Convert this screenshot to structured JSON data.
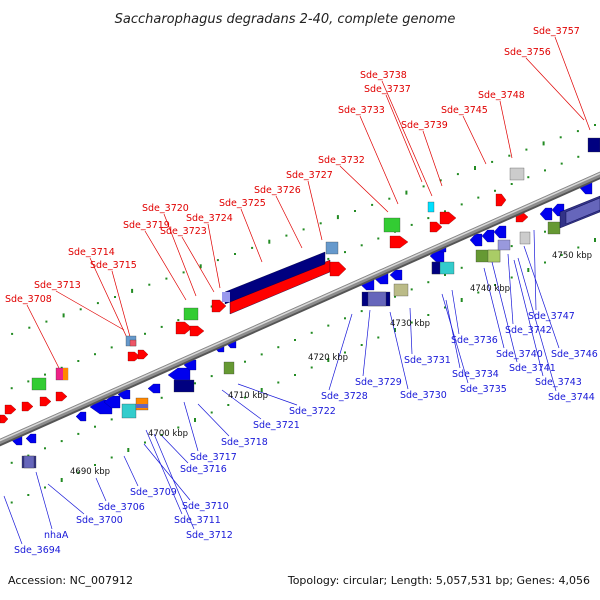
{
  "title": "Saccharophagus degradans 2-40, complete genome",
  "footer": {
    "accession": "Accession: NC_007912",
    "topology": "Topology: circular; Length: 5,057,531 bp; Genes: 4,056"
  },
  "colors": {
    "forward_label": "#e00000",
    "reverse_label": "#1818d8",
    "forward_gene": "#ff0000",
    "reverse_gene": "#0000ee",
    "backbone": "#8c8c8c",
    "tick": "#228b22"
  },
  "scale_labels": [
    {
      "text": "4690 kbp",
      "kbp": 4690
    },
    {
      "text": "4700 kbp",
      "kbp": 4700
    },
    {
      "text": "4710 kbp",
      "kbp": 4710
    },
    {
      "text": "4720 kbp",
      "kbp": 4720
    },
    {
      "text": "4730 kbp",
      "kbp": 4730
    },
    {
      "text": "4740 kbp",
      "kbp": 4740
    },
    {
      "text": "4750 kbp",
      "kbp": 4750
    }
  ],
  "top_labels": [
    "Sde_3708",
    "Sde_3713",
    "Sde_3714",
    "Sde_3715",
    "Sde_3719",
    "Sde_3720",
    "Sde_3723",
    "Sde_3724",
    "Sde_3725",
    "Sde_3726",
    "Sde_3727",
    "Sde_3732",
    "Sde_3733",
    "Sde_3737",
    "Sde_3738",
    "Sde_3739",
    "Sde_3745",
    "Sde_3748",
    "Sde_3756",
    "Sde_3757"
  ],
  "bottom_labels": [
    "Sde_3694",
    "nhaA",
    "Sde_3700",
    "Sde_3706",
    "Sde_3709",
    "Sde_3710",
    "Sde_3711",
    "Sde_3712",
    "Sde_3716",
    "Sde_3717",
    "Sde_3718",
    "Sde_3721",
    "Sde_3722",
    "Sde_3728",
    "Sde_3729",
    "Sde_3730",
    "Sde_3731",
    "Sde_3734",
    "Sde_3735",
    "Sde_3736",
    "Sde_3740",
    "Sde_3741",
    "Sde_3742",
    "Sde_3743",
    "Sde_3744",
    "Sde_3746",
    "Sde_3747"
  ]
}
